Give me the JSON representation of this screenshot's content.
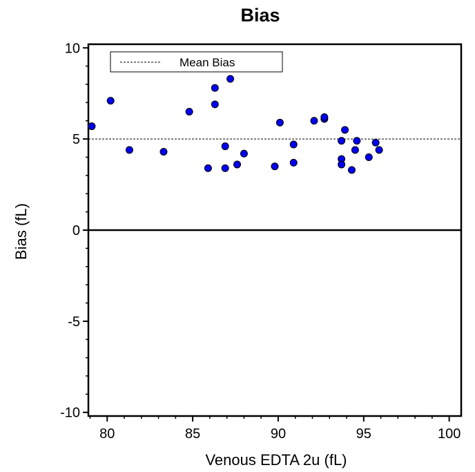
{
  "chart_data": {
    "type": "scatter",
    "title": "Bias",
    "xlabel": "Venous EDTA 2u (fL)",
    "ylabel": "Bias (fL)",
    "xlim": [
      78.9,
      100.7
    ],
    "ylim": [
      -10.2,
      10.2
    ],
    "x_ticks": [
      80,
      85,
      90,
      95,
      100
    ],
    "y_ticks": [
      -10,
      -5,
      0,
      5,
      10
    ],
    "mean_bias": 5.0,
    "zero_line": 0,
    "legend": {
      "entries": [
        "Mean Bias"
      ],
      "placement": "top-left"
    },
    "grid": false,
    "point_color": "#0000ee",
    "points": [
      {
        "x": 79.1,
        "y": 5.7
      },
      {
        "x": 80.2,
        "y": 7.1
      },
      {
        "x": 81.3,
        "y": 4.4
      },
      {
        "x": 83.3,
        "y": 4.3
      },
      {
        "x": 84.8,
        "y": 6.5
      },
      {
        "x": 85.9,
        "y": 3.4
      },
      {
        "x": 86.3,
        "y": 7.8
      },
      {
        "x": 86.3,
        "y": 6.9
      },
      {
        "x": 86.9,
        "y": 4.6
      },
      {
        "x": 86.9,
        "y": 3.4
      },
      {
        "x": 87.2,
        "y": 8.3
      },
      {
        "x": 87.6,
        "y": 3.6
      },
      {
        "x": 88.0,
        "y": 4.2
      },
      {
        "x": 89.8,
        "y": 3.5
      },
      {
        "x": 90.1,
        "y": 5.9
      },
      {
        "x": 90.9,
        "y": 4.7
      },
      {
        "x": 90.9,
        "y": 3.7
      },
      {
        "x": 92.1,
        "y": 6.0
      },
      {
        "x": 92.7,
        "y": 6.1
      },
      {
        "x": 92.7,
        "y": 6.2
      },
      {
        "x": 93.7,
        "y": 4.9
      },
      {
        "x": 93.7,
        "y": 3.9
      },
      {
        "x": 93.7,
        "y": 3.6
      },
      {
        "x": 93.9,
        "y": 5.5
      },
      {
        "x": 94.3,
        "y": 3.3
      },
      {
        "x": 94.5,
        "y": 4.4
      },
      {
        "x": 94.6,
        "y": 4.9
      },
      {
        "x": 95.3,
        "y": 4.0
      },
      {
        "x": 95.7,
        "y": 4.8
      },
      {
        "x": 95.9,
        "y": 4.4
      }
    ]
  }
}
